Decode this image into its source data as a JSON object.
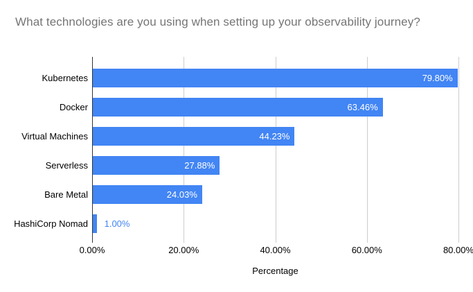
{
  "title": "What technologies are you using when setting up your observability journey?",
  "chart_data": {
    "type": "bar",
    "orientation": "horizontal",
    "title": "What technologies are you using when setting up your observability journey?",
    "categories": [
      "Kubernetes",
      "Docker",
      "Virtual Machines",
      "Serverless",
      "Bare Metal",
      "HashiCorp Nomad"
    ],
    "values": [
      79.8,
      63.46,
      44.23,
      27.88,
      24.03,
      1.0
    ],
    "value_labels": [
      "79.80%",
      "63.46%",
      "44.23%",
      "27.88%",
      "24.03%",
      "1.00%"
    ],
    "xlabel": "Percentage",
    "ylabel": "",
    "x_ticks": [
      "0.00%",
      "20.00%",
      "40.00%",
      "60.00%",
      "80.00%"
    ],
    "x_tick_values": [
      0,
      20,
      40,
      60,
      80
    ],
    "xlim": [
      0,
      80
    ],
    "grid": true,
    "legend": "none",
    "colors": {
      "bar": "#4285f4",
      "value_label_inside": "#ffffff",
      "value_label_outside": "#4285f4",
      "title_text": "#757575",
      "axis_text": "#000000",
      "gridline": "#cccccc",
      "axis_baseline": "#333333",
      "background": "#ffffff"
    }
  }
}
